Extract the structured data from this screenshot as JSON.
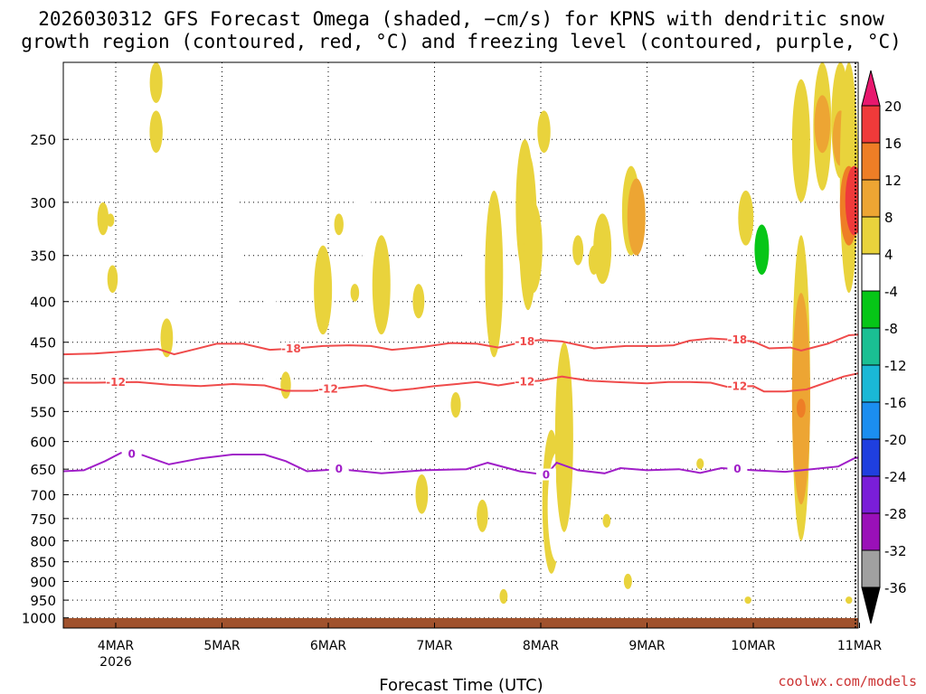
{
  "title": {
    "line1": "2026030312 GFS Forecast Omega (shaded, −cm/s) for KPNS with dendritic snow",
    "line2": "growth region (contoured, red, °C) and freezing level (contoured, purple, °C)"
  },
  "xlabel": "Forecast Time (UTC)",
  "credit": "coolwx.com/models",
  "chart_data": {
    "type": "heatmap",
    "title": "2026030312 GFS Forecast Omega (shaded, −cm/s) for KPNS with dendritic snow growth region (contoured, red, °C) and freezing level (contoured, purple, °C)",
    "xlabel": "Forecast Time (UTC)",
    "ylabel": "",
    "x_ticks": [
      {
        "day": 4,
        "label": "4MAR",
        "sublabel": "2026"
      },
      {
        "day": 5,
        "label": "5MAR",
        "sublabel": ""
      },
      {
        "day": 6,
        "label": "6MAR",
        "sublabel": ""
      },
      {
        "day": 7,
        "label": "7MAR",
        "sublabel": ""
      },
      {
        "day": 8,
        "label": "8MAR",
        "sublabel": ""
      },
      {
        "day": 9,
        "label": "9MAR",
        "sublabel": ""
      },
      {
        "day": 10,
        "label": "10MAR",
        "sublabel": ""
      },
      {
        "day": 11,
        "label": "11MAR",
        "sublabel": ""
      }
    ],
    "xlim_day": [
      3.5,
      11.0
    ],
    "y_axis": "pressure (hPa), log scale, inverted",
    "ylim_hpa": [
      1030,
      200
    ],
    "y_ticks": [
      250,
      300,
      350,
      400,
      450,
      500,
      550,
      600,
      650,
      700,
      750,
      800,
      850,
      900,
      950,
      1000
    ],
    "grid": "dotted",
    "colorbar": {
      "levels": [
        20,
        16,
        12,
        8,
        4,
        -4,
        -8,
        -12,
        -16,
        -20,
        -24,
        -28,
        -32,
        -36
      ],
      "colors": [
        "#e8186e",
        "#ef3a3a",
        "#ee7e26",
        "#eda533",
        "#e9d33c",
        "#ffffff",
        "#06c617",
        "#1abf93",
        "#1ab8d6",
        "#1b8ef0",
        "#1f3fdf",
        "#7a1ed8",
        "#9a10b8",
        "#a0a0a0",
        "#000000"
      ]
    },
    "contours": {
      "dgz_upper": {
        "label": "-18",
        "color": "#ef4b4b",
        "points": [
          [
            3.5,
            466
          ],
          [
            3.8,
            465
          ],
          [
            4.2,
            461
          ],
          [
            4.4,
            459
          ],
          [
            4.55,
            466
          ],
          [
            4.75,
            459
          ],
          [
            4.95,
            452
          ],
          [
            5.2,
            452
          ],
          [
            5.45,
            460
          ],
          [
            5.7,
            458
          ],
          [
            5.95,
            455
          ],
          [
            6.2,
            454
          ],
          [
            6.4,
            455
          ],
          [
            6.6,
            460
          ],
          [
            6.9,
            456
          ],
          [
            7.15,
            451
          ],
          [
            7.4,
            452
          ],
          [
            7.6,
            457
          ],
          [
            7.85,
            449
          ],
          [
            8.0,
            447
          ],
          [
            8.2,
            449
          ],
          [
            8.5,
            458
          ],
          [
            8.8,
            455
          ],
          [
            9.1,
            455
          ],
          [
            9.25,
            454
          ],
          [
            9.4,
            448
          ],
          [
            9.6,
            445
          ],
          [
            9.85,
            447
          ],
          [
            10.0,
            449
          ],
          [
            10.15,
            458
          ],
          [
            10.35,
            457
          ],
          [
            10.45,
            461
          ],
          [
            10.7,
            452
          ],
          [
            10.9,
            441
          ],
          [
            11.0,
            440
          ]
        ]
      },
      "dgz_lower": {
        "label": "-12",
        "color": "#ef4b4b",
        "points": [
          [
            3.5,
            506
          ],
          [
            3.8,
            506
          ],
          [
            4.2,
            505
          ],
          [
            4.5,
            509
          ],
          [
            4.8,
            511
          ],
          [
            5.1,
            508
          ],
          [
            5.4,
            510
          ],
          [
            5.6,
            518
          ],
          [
            5.85,
            518
          ],
          [
            6.1,
            514
          ],
          [
            6.35,
            510
          ],
          [
            6.6,
            518
          ],
          [
            6.8,
            515
          ],
          [
            7.0,
            511
          ],
          [
            7.4,
            505
          ],
          [
            7.6,
            510
          ],
          [
            7.8,
            505
          ],
          [
            8.0,
            503
          ],
          [
            8.2,
            497
          ],
          [
            8.45,
            503
          ],
          [
            8.7,
            505
          ],
          [
            9.0,
            507
          ],
          [
            9.2,
            505
          ],
          [
            9.4,
            505
          ],
          [
            9.6,
            506
          ],
          [
            9.75,
            512
          ],
          [
            10.0,
            511
          ],
          [
            10.1,
            519
          ],
          [
            10.3,
            519
          ],
          [
            10.5,
            516
          ],
          [
            10.7,
            505
          ],
          [
            10.85,
            497
          ],
          [
            11.0,
            492
          ]
        ]
      },
      "freezing": {
        "label": "0",
        "color": "#a01ec8",
        "points": [
          [
            3.5,
            654
          ],
          [
            3.7,
            652
          ],
          [
            3.9,
            635
          ],
          [
            4.05,
            620
          ],
          [
            4.25,
            624
          ],
          [
            4.5,
            641
          ],
          [
            4.8,
            630
          ],
          [
            5.1,
            623
          ],
          [
            5.4,
            623
          ],
          [
            5.6,
            635
          ],
          [
            5.8,
            654
          ],
          [
            6.1,
            650
          ],
          [
            6.5,
            658
          ],
          [
            6.9,
            652
          ],
          [
            7.3,
            650
          ],
          [
            7.5,
            638
          ],
          [
            7.8,
            654
          ],
          [
            8.05,
            661
          ],
          [
            8.15,
            638
          ],
          [
            8.35,
            652
          ],
          [
            8.6,
            658
          ],
          [
            8.75,
            648
          ],
          [
            9.0,
            652
          ],
          [
            9.3,
            650
          ],
          [
            9.5,
            657
          ],
          [
            9.7,
            648
          ],
          [
            10.0,
            652
          ],
          [
            10.3,
            655
          ],
          [
            10.55,
            650
          ],
          [
            10.8,
            645
          ],
          [
            10.95,
            630
          ],
          [
            11.0,
            628
          ]
        ]
      }
    },
    "omega_cells": [
      {
        "day": 3.88,
        "p0": 300,
        "p1": 330,
        "c": 4
      },
      {
        "day": 3.95,
        "p0": 310,
        "p1": 322,
        "c": 4
      },
      {
        "day": 3.97,
        "p0": 360,
        "p1": 390,
        "c": 4
      },
      {
        "day": 4.38,
        "p0": 200,
        "p1": 225,
        "c": 4
      },
      {
        "day": 4.38,
        "p0": 230,
        "p1": 260,
        "c": 4
      },
      {
        "day": 4.48,
        "p0": 420,
        "p1": 470,
        "c": 4
      },
      {
        "day": 4.55,
        "p0": 390,
        "p1": 415,
        "c": 5
      },
      {
        "day": 5.1,
        "p0": 280,
        "p1": 410,
        "c": 5
      },
      {
        "day": 5.45,
        "p0": 380,
        "p1": 530,
        "c": 5
      },
      {
        "day": 5.6,
        "p0": 560,
        "p1": 630,
        "c": 5
      },
      {
        "day": 5.6,
        "p0": 490,
        "p1": 530,
        "c": 4
      },
      {
        "day": 5.95,
        "p0": 340,
        "p1": 440,
        "c": 4
      },
      {
        "day": 6.1,
        "p0": 310,
        "p1": 330,
        "c": 4
      },
      {
        "day": 6.1,
        "p0": 360,
        "p1": 390,
        "c": 5
      },
      {
        "day": 6.32,
        "p0": 270,
        "p1": 350,
        "c": 5
      },
      {
        "day": 6.4,
        "p0": 320,
        "p1": 430,
        "c": 5
      },
      {
        "day": 6.25,
        "p0": 380,
        "p1": 400,
        "c": 4
      },
      {
        "day": 6.5,
        "p0": 330,
        "p1": 440,
        "c": 4
      },
      {
        "day": 6.48,
        "p0": 590,
        "p1": 630,
        "c": 5
      },
      {
        "day": 6.65,
        "p0": 900,
        "p1": 950,
        "c": 5
      },
      {
        "day": 6.78,
        "p0": 860,
        "p1": 890,
        "c": 5
      },
      {
        "day": 6.85,
        "p0": 380,
        "p1": 420,
        "c": 4
      },
      {
        "day": 6.88,
        "p0": 660,
        "p1": 740,
        "c": 4
      },
      {
        "day": 7.2,
        "p0": 520,
        "p1": 560,
        "c": 4
      },
      {
        "day": 7.35,
        "p0": 320,
        "p1": 410,
        "c": 5
      },
      {
        "day": 7.4,
        "p0": 540,
        "p1": 580,
        "c": 5
      },
      {
        "day": 7.45,
        "p0": 710,
        "p1": 780,
        "c": 4
      },
      {
        "day": 7.56,
        "p0": 290,
        "p1": 470,
        "c": 4
      },
      {
        "day": 7.65,
        "p0": 920,
        "p1": 960,
        "c": 4
      },
      {
        "day": 7.85,
        "p0": 250,
        "p1": 370,
        "c": 4
      },
      {
        "day": 7.88,
        "p0": 260,
        "p1": 410,
        "c": 4
      },
      {
        "day": 7.93,
        "p0": 300,
        "p1": 390,
        "c": 4
      },
      {
        "day": 8.03,
        "p0": 230,
        "p1": 260,
        "c": 4
      },
      {
        "day": 8.1,
        "p0": 580,
        "p1": 880,
        "c": 4
      },
      {
        "day": 8.15,
        "p0": 620,
        "p1": 850,
        "c": 5
      },
      {
        "day": 8.15,
        "p0": 350,
        "p1": 560,
        "c": 5
      },
      {
        "day": 8.22,
        "p0": 450,
        "p1": 780,
        "c": 4
      },
      {
        "day": 8.35,
        "p0": 330,
        "p1": 360,
        "c": 4
      },
      {
        "day": 8.5,
        "p0": 340,
        "p1": 370,
        "c": 4
      },
      {
        "day": 8.58,
        "p0": 310,
        "p1": 380,
        "c": 4
      },
      {
        "day": 8.62,
        "p0": 740,
        "p1": 770,
        "c": 4
      },
      {
        "day": 8.7,
        "p0": 280,
        "p1": 330,
        "c": 5
      },
      {
        "day": 8.85,
        "p0": 270,
        "p1": 350,
        "c": 4
      },
      {
        "day": 8.9,
        "p0": 280,
        "p1": 350,
        "c": 3
      },
      {
        "day": 8.82,
        "p0": 880,
        "p1": 920,
        "c": 4
      },
      {
        "day": 9.2,
        "p0": 340,
        "p1": 360,
        "c": 5
      },
      {
        "day": 9.45,
        "p0": 290,
        "p1": 380,
        "c": 5
      },
      {
        "day": 9.5,
        "p0": 630,
        "p1": 650,
        "c": 4
      },
      {
        "day": 9.82,
        "p0": 280,
        "p1": 290,
        "c": 5
      },
      {
        "day": 9.93,
        "p0": 290,
        "p1": 340,
        "c": 4
      },
      {
        "day": 9.95,
        "p0": 940,
        "p1": 960,
        "c": 4
      },
      {
        "day": 10.08,
        "p0": 300,
        "p1": 380,
        "c": 5
      },
      {
        "day": 10.08,
        "p0": 320,
        "p1": 370,
        "c": 6
      },
      {
        "day": 10.15,
        "p0": 500,
        "p1": 560,
        "c": 5
      },
      {
        "day": 10.17,
        "p0": 590,
        "p1": 660,
        "c": 5
      },
      {
        "day": 10.45,
        "p0": 210,
        "p1": 300,
        "c": 4
      },
      {
        "day": 10.45,
        "p0": 330,
        "p1": 800,
        "c": 4
      },
      {
        "day": 10.45,
        "p0": 390,
        "p1": 720,
        "c": 3
      },
      {
        "day": 10.45,
        "p0": 530,
        "p1": 560,
        "c": 2
      },
      {
        "day": 10.65,
        "p0": 200,
        "p1": 290,
        "c": 4
      },
      {
        "day": 10.65,
        "p0": 220,
        "p1": 260,
        "c": 3
      },
      {
        "day": 10.75,
        "p0": 420,
        "p1": 440,
        "c": 5
      },
      {
        "day": 10.82,
        "p0": 200,
        "p1": 280,
        "c": 4
      },
      {
        "day": 10.82,
        "p0": 230,
        "p1": 270,
        "c": 3
      },
      {
        "day": 10.9,
        "p0": 200,
        "p1": 390,
        "c": 4
      },
      {
        "day": 10.9,
        "p0": 270,
        "p1": 340,
        "c": 2
      },
      {
        "day": 10.95,
        "p0": 270,
        "p1": 330,
        "c": 1
      },
      {
        "day": 10.9,
        "p0": 940,
        "p1": 960,
        "c": 4
      },
      {
        "day": 10.9,
        "p0": 580,
        "p1": 600,
        "c": 5
      },
      {
        "day": 10.65,
        "p0": 590,
        "p1": 640,
        "c": 5
      }
    ]
  }
}
